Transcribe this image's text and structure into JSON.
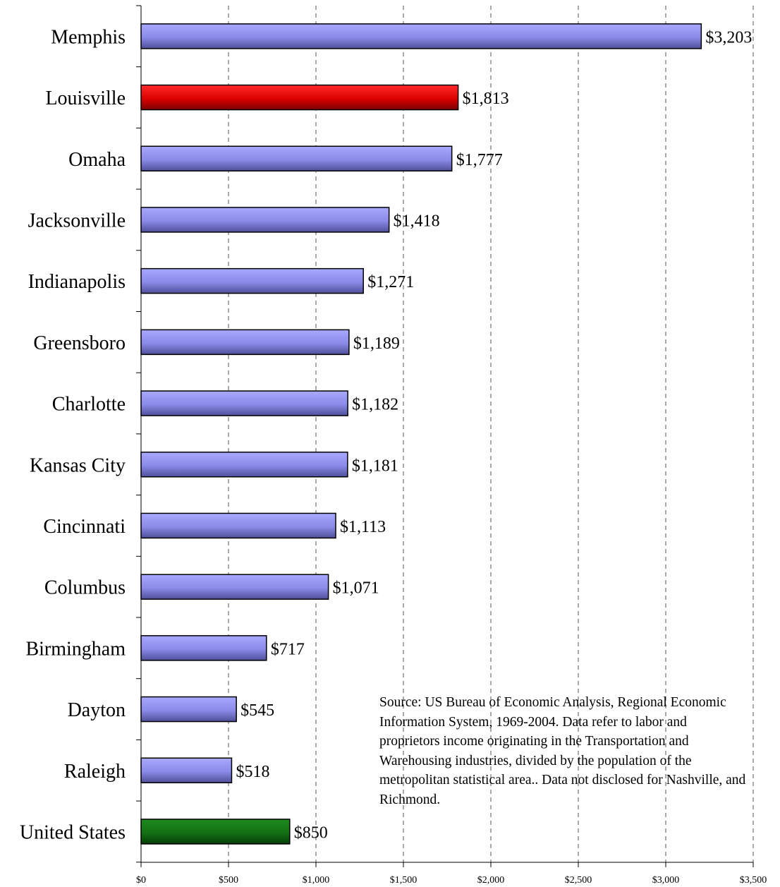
{
  "chart_data": {
    "type": "bar",
    "orientation": "horizontal",
    "categories": [
      "Memphis",
      "Louisville",
      "Omaha",
      "Jacksonville",
      "Indianapolis",
      "Greensboro",
      "Charlotte",
      "Kansas City",
      "Cincinnati",
      "Columbus",
      "Birmingham",
      "Dayton",
      "Raleigh",
      "United States"
    ],
    "values": [
      3203,
      1813,
      1777,
      1418,
      1271,
      1189,
      1182,
      1181,
      1113,
      1071,
      717,
      545,
      518,
      850
    ],
    "value_labels": [
      "$3,203",
      "$1,813",
      "$1,777",
      "$1,418",
      "$1,271",
      "$1,189",
      "$1,182",
      "$1,181",
      "$1,113",
      "$1,071",
      "$717",
      "$545",
      "$518",
      "$850"
    ],
    "bar_colors": [
      "#8f8fef",
      "#e20000",
      "#8f8fef",
      "#8f8fef",
      "#8f8fef",
      "#8f8fef",
      "#8f8fef",
      "#8f8fef",
      "#8f8fef",
      "#8f8fef",
      "#8f8fef",
      "#8f8fef",
      "#8f8fef",
      "#1a7a1a"
    ],
    "xlim": [
      0,
      3500
    ],
    "x_ticks": [
      0,
      500,
      1000,
      1500,
      2000,
      2500,
      3000,
      3500
    ],
    "x_tick_labels": [
      "$0",
      "$500",
      "$1,000",
      "$1,500",
      "$2,000",
      "$2,500",
      "$3,000",
      "$3,500"
    ],
    "grid": "vertical-dashed",
    "legend": "none",
    "title": "",
    "xlabel": "",
    "ylabel": ""
  },
  "source_note": "Source: US Bureau of Economic Analysis, Regional Economic Information System, 1969-2004. Data refer to labor and proprietors income originating in the Transportation and Warehousing industries, divided by the population of the metropolitan statistical area.. Data not disclosed for Nashville, and Richmond."
}
